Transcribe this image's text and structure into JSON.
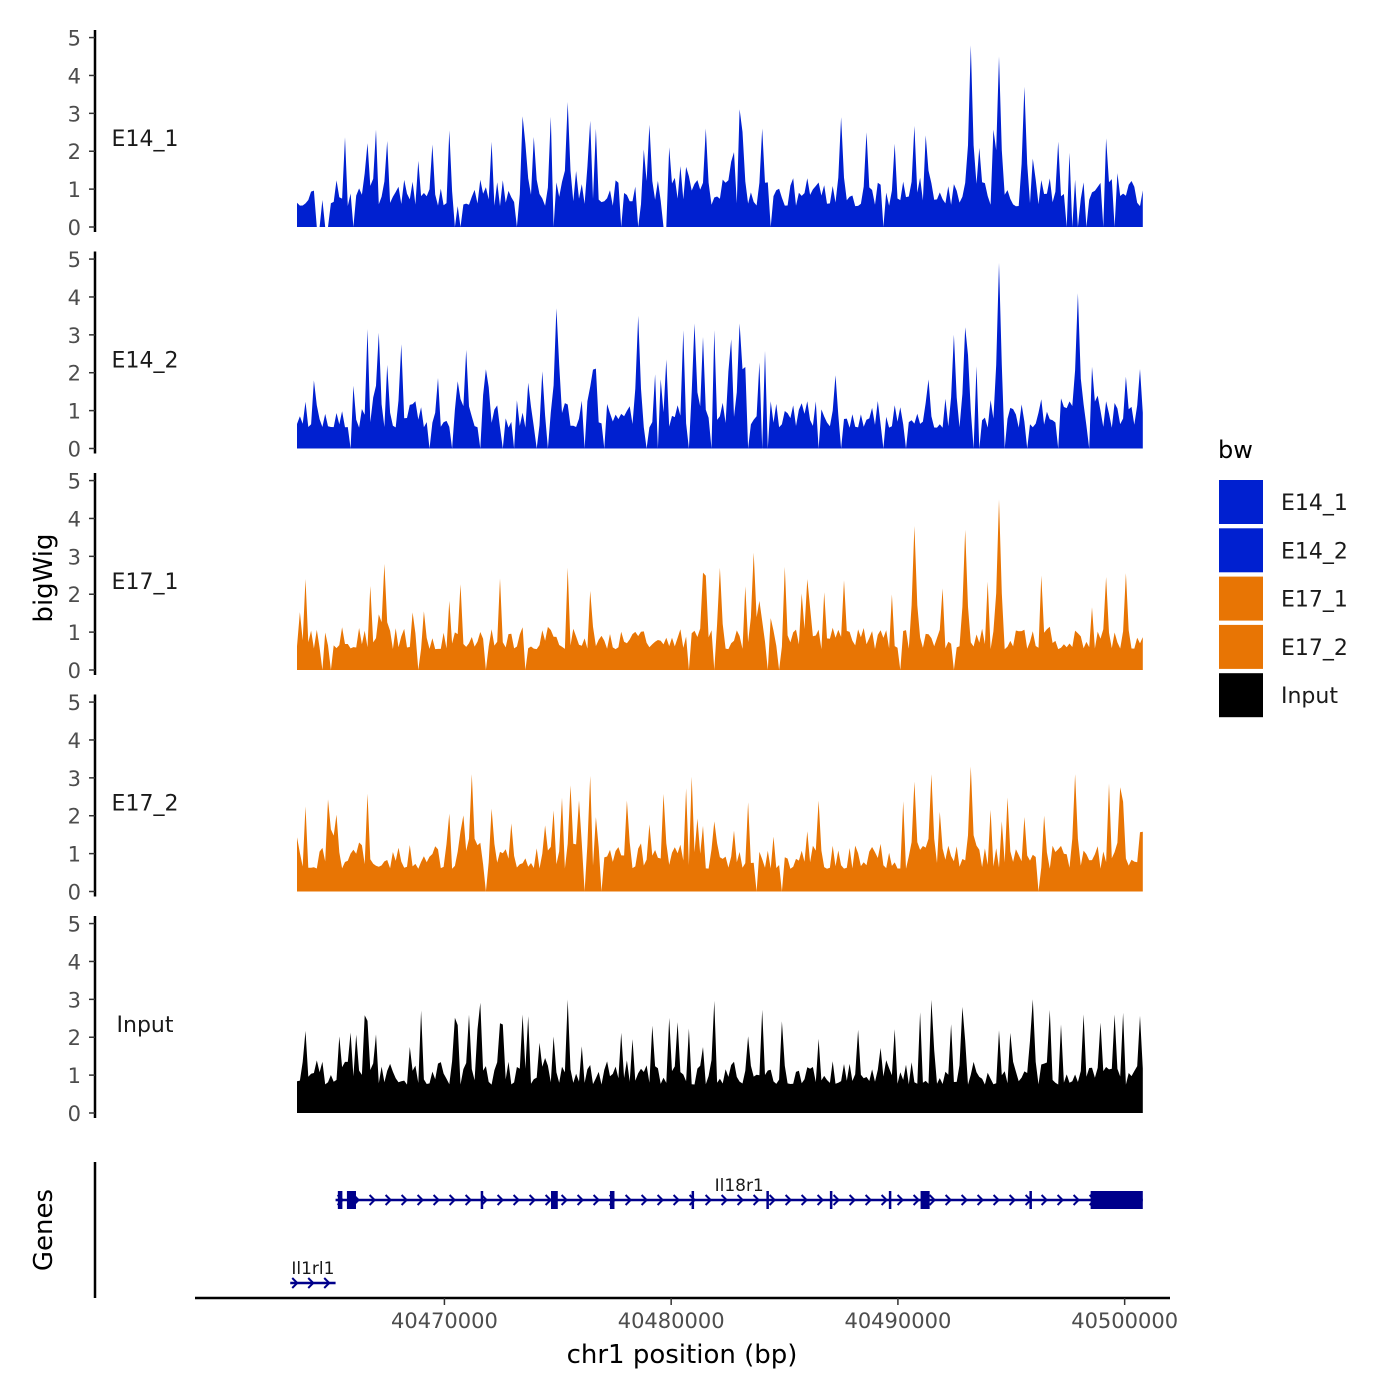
{
  "chart_data": {
    "type": "area",
    "chromosome": "chr1",
    "y_axis_title": "bigWig",
    "x_axis_title": "chr1 position (bp)",
    "genes_panel_title": "Genes",
    "x_range": [
      40459000,
      40502000
    ],
    "signal_range": [
      40463500,
      40500800
    ],
    "x_ticks": [
      40470000,
      40480000,
      40490000,
      40500000
    ],
    "x_tick_labels": [
      "40470000",
      "40480000",
      "40490000",
      "40500000"
    ],
    "ylim": [
      0,
      5.2
    ],
    "y_ticks": [
      0,
      1,
      2,
      3,
      4,
      5
    ],
    "y_tick_labels": [
      "0",
      "1",
      "2",
      "3",
      "4",
      "5"
    ],
    "legend": {
      "title": "bw",
      "position": "right",
      "entries": [
        {
          "label": "E14_1",
          "color": "#0020d0"
        },
        {
          "label": "E14_2",
          "color": "#0020d0"
        },
        {
          "label": "E17_1",
          "color": "#e87504"
        },
        {
          "label": "E17_2",
          "color": "#e87504"
        },
        {
          "label": "Input",
          "color": "#000000"
        }
      ]
    },
    "series": [
      {
        "name": "E14_1",
        "label": "E14_1",
        "color": "#0020d0",
        "seed": 11,
        "base": 0.55,
        "spread": 0.75,
        "peak_rate": 0.15,
        "gap_rate": 0.08,
        "peaks": [
          [
            40475400,
            3.3
          ],
          [
            40487500,
            2.9
          ],
          [
            40493200,
            4.8
          ],
          [
            40494400,
            4.5
          ],
          [
            40495600,
            3.7
          ],
          [
            40479000,
            2.7
          ],
          [
            40484000,
            2.6
          ],
          [
            40481500,
            2.6
          ]
        ]
      },
      {
        "name": "E14_2",
        "label": "E14_2",
        "color": "#0020d0",
        "seed": 23,
        "base": 0.55,
        "spread": 0.8,
        "peak_rate": 0.16,
        "gap_rate": 0.07,
        "peaks": [
          [
            40475000,
            3.7
          ],
          [
            40494500,
            4.9
          ],
          [
            40497900,
            4.1
          ],
          [
            40493000,
            3.2
          ],
          [
            40478500,
            3.5
          ],
          [
            40481000,
            3.3
          ],
          [
            40483000,
            3.3
          ],
          [
            40492500,
            3.0
          ]
        ]
      },
      {
        "name": "E17_1",
        "label": "E17_1",
        "color": "#e87504",
        "seed": 37,
        "base": 0.55,
        "spread": 0.6,
        "peak_rate": 0.13,
        "gap_rate": 0.03,
        "peaks": [
          [
            40494400,
            4.5
          ],
          [
            40493000,
            3.7
          ],
          [
            40490700,
            3.8
          ],
          [
            40483700,
            3.1
          ],
          [
            40467400,
            2.8
          ],
          [
            40482200,
            2.7
          ],
          [
            40486000,
            2.4
          ]
        ]
      },
      {
        "name": "E17_2",
        "label": "E17_2",
        "color": "#e87504",
        "seed": 53,
        "base": 0.6,
        "spread": 0.7,
        "peak_rate": 0.14,
        "gap_rate": 0.03,
        "peaks": [
          [
            40493200,
            3.3
          ],
          [
            40497800,
            3.1
          ],
          [
            40471200,
            3.1
          ],
          [
            40491500,
            3.1
          ],
          [
            40475600,
            2.8
          ],
          [
            40490700,
            2.9
          ],
          [
            40486500,
            2.4
          ]
        ]
      },
      {
        "name": "Input",
        "label": "Input",
        "color": "#000000",
        "seed": 71,
        "base": 0.75,
        "spread": 0.65,
        "peak_rate": 0.14,
        "gap_rate": 0.0,
        "peaks": [
          [
            40496000,
            3.0
          ],
          [
            40473500,
            2.6
          ],
          [
            40480300,
            2.4
          ],
          [
            40492800,
            2.8
          ],
          [
            40499600,
            2.6
          ],
          [
            40488200,
            2.2
          ]
        ]
      }
    ],
    "genes": [
      {
        "name": "Il18r1",
        "start": 40465200,
        "end": 40500800,
        "strand": "+",
        "row": 0,
        "exons": [
          [
            40465300,
            40465500
          ],
          [
            40465700,
            40466100
          ],
          [
            40471600,
            40471700
          ],
          [
            40474700,
            40475000
          ],
          [
            40477300,
            40477500
          ],
          [
            40480900,
            40481000
          ],
          [
            40484200,
            40484250
          ],
          [
            40487000,
            40487100
          ],
          [
            40489600,
            40489700
          ],
          [
            40491000,
            40491400
          ],
          [
            40495800,
            40495900
          ],
          [
            40498500,
            40500800
          ]
        ]
      },
      {
        "name": "Il1rl1",
        "start": 40463200,
        "end": 40465200,
        "strand": "+",
        "row": 1,
        "exons": []
      }
    ]
  }
}
